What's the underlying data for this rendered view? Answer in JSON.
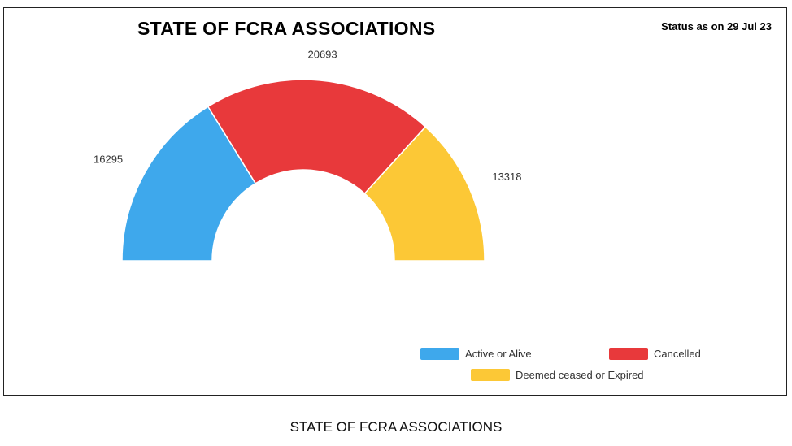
{
  "chart_data": {
    "type": "pie",
    "title": "STATE OF FCRA ASSOCIATIONS",
    "subtitle": "Status as on 29 Jul 23",
    "categories": [
      "Active or Alive",
      "Cancelled",
      "Deemed ceased or Expired"
    ],
    "values": [
      16295,
      20693,
      13318
    ],
    "colors": [
      "#3ea8ec",
      "#e8393b",
      "#fcc836"
    ],
    "donut": true,
    "semicircle": true,
    "legend_position": "bottom-right"
  },
  "caption": "STATE OF FCRA ASSOCIATIONS"
}
